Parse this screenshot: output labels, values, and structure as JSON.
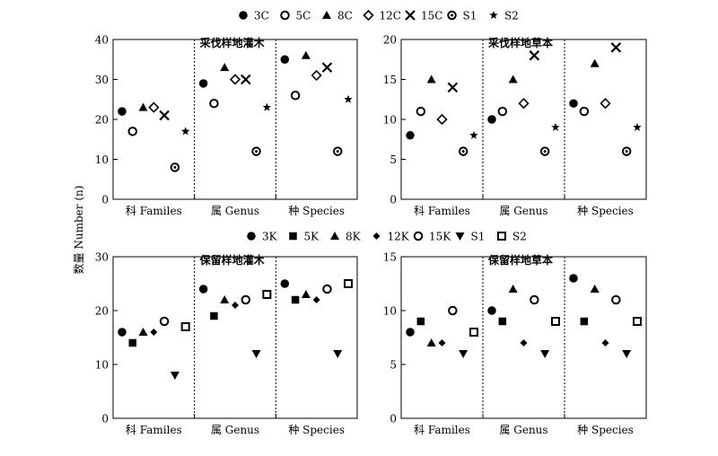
{
  "ylabel": "数量 Number (n)",
  "legends": [
    {
      "items": [
        {
          "label": "3C",
          "marker": "filled-circle"
        },
        {
          "label": "5C",
          "marker": "open-circle"
        },
        {
          "label": "8C",
          "marker": "filled-triangle"
        },
        {
          "label": "12C",
          "marker": "open-diamond"
        },
        {
          "label": "15C",
          "marker": "cross"
        },
        {
          "label": "S1",
          "marker": "bullseye"
        },
        {
          "label": "S2",
          "marker": "star"
        }
      ]
    },
    {
      "items": [
        {
          "label": "3K",
          "marker": "filled-circle"
        },
        {
          "label": "5K",
          "marker": "filled-square"
        },
        {
          "label": "8K",
          "marker": "filled-triangle"
        },
        {
          "label": "12K",
          "marker": "filled-diamond"
        },
        {
          "label": "15K",
          "marker": "open-circle"
        },
        {
          "label": "S1",
          "marker": "down-triangle"
        },
        {
          "label": "S2",
          "marker": "open-square"
        }
      ]
    }
  ],
  "chart_data": [
    {
      "type": "scatter",
      "title": "采伐样地灌木",
      "categories": [
        "科 Familes",
        "属 Genus",
        "种 Species"
      ],
      "ylim": [
        0,
        40
      ],
      "yticks": [
        0,
        10,
        20,
        30,
        40
      ],
      "series": [
        {
          "name": "3C",
          "values": [
            22,
            29,
            35
          ]
        },
        {
          "name": "5C",
          "values": [
            17,
            24,
            26
          ]
        },
        {
          "name": "8C",
          "values": [
            23,
            33,
            36
          ]
        },
        {
          "name": "12C",
          "values": [
            23,
            30,
            31
          ]
        },
        {
          "name": "15C",
          "values": [
            21,
            30,
            33
          ]
        },
        {
          "name": "S1",
          "values": [
            8,
            12,
            12
          ]
        },
        {
          "name": "S2",
          "values": [
            17,
            23,
            25
          ]
        }
      ]
    },
    {
      "type": "scatter",
      "title": "采伐样地草本",
      "categories": [
        "科 Familes",
        "属 Genus",
        "种 Species"
      ],
      "ylim": [
        0,
        20
      ],
      "yticks": [
        0,
        5,
        10,
        15,
        20
      ],
      "series": [
        {
          "name": "3C",
          "values": [
            8,
            10,
            12
          ]
        },
        {
          "name": "5C",
          "values": [
            11,
            11,
            11
          ]
        },
        {
          "name": "8C",
          "values": [
            15,
            15,
            17
          ]
        },
        {
          "name": "12C",
          "values": [
            10,
            12,
            12
          ]
        },
        {
          "name": "15C",
          "values": [
            14,
            18,
            19
          ]
        },
        {
          "name": "S1",
          "values": [
            6,
            6,
            6
          ]
        },
        {
          "name": "S2",
          "values": [
            8,
            9,
            9
          ]
        }
      ]
    },
    {
      "type": "scatter",
      "title": "保留样地灌木",
      "categories": [
        "科 Familes",
        "属 Genus",
        "种 Species"
      ],
      "ylim": [
        0,
        30
      ],
      "yticks": [
        0,
        10,
        20,
        30
      ],
      "series": [
        {
          "name": "3K",
          "values": [
            16,
            24,
            25
          ]
        },
        {
          "name": "5K",
          "values": [
            14,
            19,
            22
          ]
        },
        {
          "name": "8K",
          "values": [
            16,
            22,
            23
          ]
        },
        {
          "name": "12K",
          "values": [
            16,
            21,
            22
          ]
        },
        {
          "name": "15K",
          "values": [
            18,
            22,
            24
          ]
        },
        {
          "name": "S1",
          "values": [
            8,
            12,
            12
          ]
        },
        {
          "name": "S2",
          "values": [
            17,
            23,
            25
          ]
        }
      ]
    },
    {
      "type": "scatter",
      "title": "保留样地草本",
      "categories": [
        "科 Familes",
        "属 Genus",
        "种 Species"
      ],
      "ylim": [
        0,
        15
      ],
      "yticks": [
        0,
        5,
        10,
        15
      ],
      "series": [
        {
          "name": "3K",
          "values": [
            8,
            10,
            13
          ]
        },
        {
          "name": "5K",
          "values": [
            9,
            9,
            9
          ]
        },
        {
          "name": "8K",
          "values": [
            7,
            12,
            12
          ]
        },
        {
          "name": "12K",
          "values": [
            7,
            7,
            7
          ]
        },
        {
          "name": "15K",
          "values": [
            10,
            11,
            11
          ]
        },
        {
          "name": "S1",
          "values": [
            6,
            6,
            6
          ]
        },
        {
          "name": "S2",
          "values": [
            8,
            9,
            9
          ]
        }
      ]
    }
  ]
}
